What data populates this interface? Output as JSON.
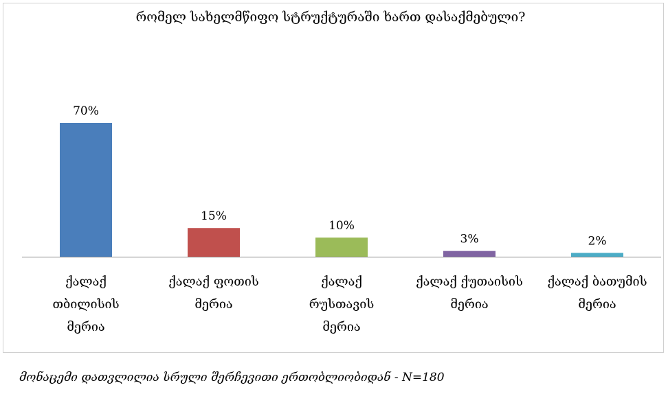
{
  "chart_data": {
    "type": "bar",
    "title": "რომელ სახელმწიფო სტრუქტურაში ხართ დასაქმებული?",
    "categories": [
      [
        "ქალაქ",
        "თბილისის",
        "მერია"
      ],
      [
        "ქალაქ ფოთის",
        "მერია"
      ],
      [
        "ქალაქ",
        "რუსთავის",
        "მერია"
      ],
      [
        "ქალაქ ქუთაისის",
        "მერია"
      ],
      [
        "ქალაქ ბათუმის",
        "მერია"
      ]
    ],
    "values": [
      70,
      15,
      10,
      3,
      2
    ],
    "value_labels": [
      "70%",
      "15%",
      "10%",
      "3%",
      "2%"
    ],
    "colors": [
      "#4a7ebb",
      "#c0504d",
      "#9bbb59",
      "#8064a2",
      "#4bacc6"
    ],
    "ylim": [
      0,
      100
    ],
    "grid": false,
    "legend": "none",
    "xlabel": "",
    "ylabel": ""
  },
  "footnote": "მონაცემი დათვლილია სრული შერჩევითი ერთობლიობიდან -  N=180"
}
